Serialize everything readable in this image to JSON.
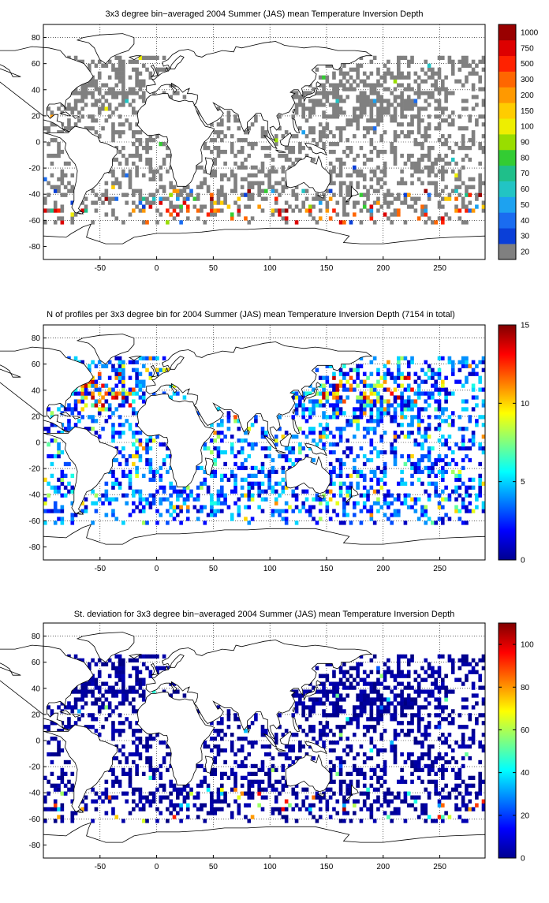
{
  "x_ticks": [
    "-50",
    "0",
    "50",
    "100",
    "150",
    "200",
    "250"
  ],
  "y_ticks": [
    "80",
    "60",
    "40",
    "20",
    "0",
    "-20",
    "-40",
    "-60",
    "-80"
  ],
  "chart_data": [
    {
      "type": "heatmap",
      "title": "3x3 degree bin−averaged 2004 Summer (JAS) mean Temperature Inversion Depth",
      "xlim": [
        -100,
        290
      ],
      "ylim": [
        -90,
        90
      ],
      "grid": true,
      "colorbar": {
        "kind": "discrete",
        "levels": [
          "20",
          "30",
          "40",
          "50",
          "60",
          "70",
          "80",
          "90",
          "100",
          "150",
          "200",
          "300",
          "500",
          "750",
          "1000"
        ],
        "colors": [
          "#808080",
          "#0a3fd8",
          "#1a6cf0",
          "#1da2f0",
          "#22c4c4",
          "#1fbf8a",
          "#33cc33",
          "#99dd00",
          "#eeee00",
          "#ffcc00",
          "#ff9900",
          "#ff6600",
          "#ff2200",
          "#dd0000",
          "#990000"
        ]
      },
      "notes": "Most bins fall in the lowest class (20, grey); higher values scattered in the Southern Ocean near 40-60S"
    },
    {
      "type": "heatmap",
      "title": "N of profiles per 3x3 degree bin for 2004 Summer (JAS) mean Temperature Inversion Depth  (7154 in total)",
      "xlim": [
        -100,
        290
      ],
      "ylim": [
        -90,
        90
      ],
      "grid": true,
      "colorbar": {
        "kind": "jet",
        "range": [
          0,
          15
        ],
        "ticks": [
          "0",
          "5",
          "10",
          "15"
        ]
      },
      "notes": "Counts mostly 1-5 with clusters of 10-15 in North Atlantic, Arabian Sea and NW Pacific"
    },
    {
      "type": "heatmap",
      "title": "St. deviation for 3x3 degree bin−averaged 2004 Summer (JAS) mean Temperature Inversion Depth",
      "xlim": [
        -100,
        290
      ],
      "ylim": [
        -90,
        90
      ],
      "grid": true,
      "colorbar": {
        "kind": "jet",
        "range": [
          0,
          110
        ],
        "ticks": [
          "0",
          "20",
          "40",
          "60",
          "80",
          "100"
        ]
      },
      "notes": "Mostly near 0 (dark blue); a few high values in the Southern Ocean"
    }
  ]
}
